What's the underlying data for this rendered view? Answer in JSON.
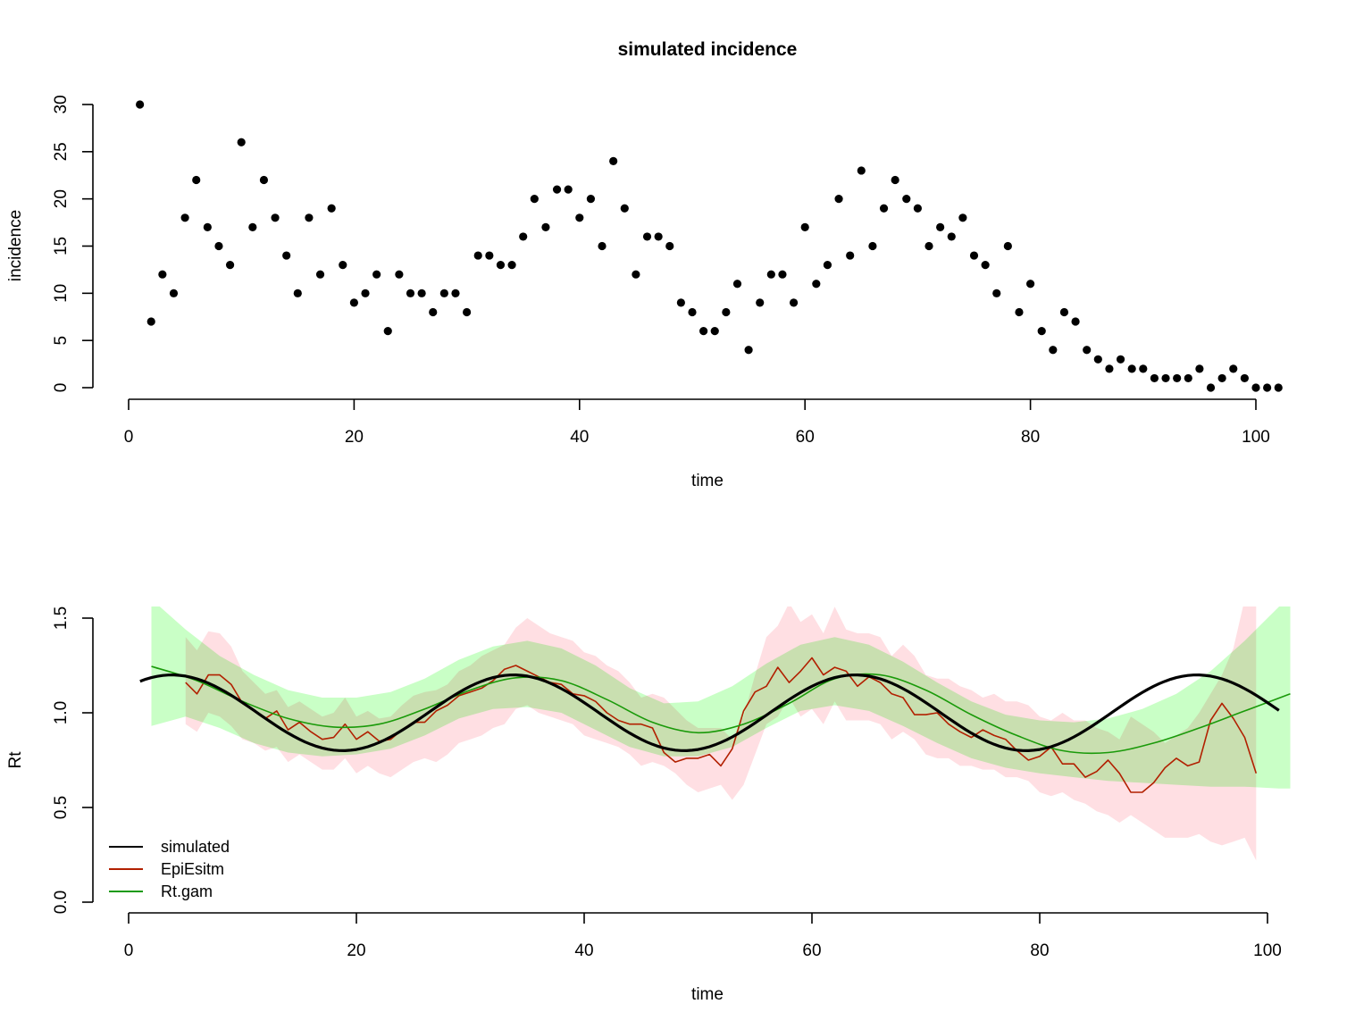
{
  "chart_data": [
    {
      "type": "scatter",
      "title": "simulated incidence",
      "xlabel": "time",
      "ylabel": "incidence",
      "xlim": [
        0,
        102
      ],
      "ylim": [
        0,
        30
      ],
      "xticks": [
        0,
        20,
        40,
        60,
        80,
        100
      ],
      "yticks": [
        0,
        5,
        10,
        15,
        20,
        25,
        30
      ],
      "grid": false,
      "series": [
        {
          "color": "#000000",
          "x": [
            1,
            2,
            3,
            4,
            5,
            6,
            7,
            8,
            9,
            10,
            11,
            12,
            13,
            14,
            15,
            16,
            17,
            18,
            19,
            20,
            21,
            22,
            23,
            24,
            25,
            26,
            27,
            28,
            29,
            30,
            31,
            32,
            33,
            34,
            35,
            36,
            37,
            38,
            39,
            40,
            41,
            42,
            43,
            44,
            45,
            46,
            47,
            48,
            49,
            50,
            51,
            52,
            53,
            54,
            55,
            56,
            57,
            58,
            59,
            60,
            61,
            62,
            63,
            64,
            65,
            66,
            67,
            68,
            69,
            70,
            71,
            72,
            73,
            74,
            75,
            76,
            77,
            78,
            79,
            80,
            81,
            82,
            83,
            84,
            85,
            86,
            87,
            88,
            89,
            90,
            91,
            92,
            93,
            94,
            95,
            96,
            97,
            98,
            99,
            100,
            101,
            102
          ],
          "y": [
            30,
            7,
            12,
            10,
            18,
            22,
            17,
            15,
            13,
            26,
            17,
            22,
            18,
            14,
            10,
            18,
            12,
            19,
            13,
            9,
            10,
            12,
            6,
            12,
            10,
            10,
            8,
            10,
            10,
            8,
            14,
            14,
            13,
            13,
            16,
            20,
            17,
            21,
            21,
            18,
            20,
            15,
            24,
            19,
            12,
            16,
            16,
            15,
            9,
            8,
            6,
            6,
            8,
            11,
            4,
            9,
            12,
            12,
            9,
            17,
            11,
            13,
            20,
            14,
            23,
            15,
            19,
            22,
            20,
            19,
            15,
            17,
            16,
            18,
            14,
            13,
            10,
            15,
            8,
            11,
            6,
            4,
            8,
            7,
            4,
            3,
            2,
            3,
            2,
            2,
            1,
            1,
            1,
            1,
            2,
            0,
            1,
            2,
            1,
            0,
            0,
            0
          ]
        }
      ]
    },
    {
      "type": "line",
      "title": "",
      "xlabel": "time",
      "ylabel": "Rt",
      "xlim": [
        0,
        102
      ],
      "ylim": [
        0,
        1.5
      ],
      "xticks": [
        0,
        20,
        40,
        60,
        80,
        100
      ],
      "yticks": [
        0.0,
        0.5,
        1.0,
        1.5
      ],
      "ytick_labels": [
        "0.0",
        "0.5",
        "1.0",
        "1.5"
      ],
      "grid": false,
      "legend": {
        "position": "bottom-left",
        "entries": [
          {
            "label": "simulated",
            "color": "#000000"
          },
          {
            "label": "EpiEsitm",
            "color": "#b22000"
          },
          {
            "label": "Rt.gam",
            "color": "#1a9a0a"
          }
        ]
      },
      "bands": [
        {
          "name": "EpiEsitm interval",
          "color": "#ffdfe3",
          "x": [
            5,
            6,
            7,
            8,
            9,
            10,
            11,
            12,
            13,
            14,
            15,
            16,
            17,
            18,
            19,
            20,
            21,
            22,
            23,
            24,
            25,
            26,
            27,
            28,
            29,
            30,
            31,
            32,
            33,
            34,
            35,
            36,
            37,
            38,
            39,
            40,
            41,
            42,
            43,
            44,
            45,
            46,
            47,
            48,
            49,
            50,
            51,
            52,
            53,
            54,
            55,
            56,
            57,
            58,
            59,
            60,
            61,
            62,
            63,
            64,
            65,
            66,
            67,
            68,
            69,
            70,
            71,
            72,
            73,
            74,
            75,
            76,
            77,
            78,
            79,
            80,
            81,
            82,
            83,
            84,
            85,
            86,
            87,
            88,
            89,
            90,
            91,
            92,
            93,
            94,
            95,
            96,
            97,
            98,
            99
          ],
          "upper": [
            1.4,
            1.33,
            1.43,
            1.42,
            1.35,
            1.22,
            1.16,
            1.1,
            1.12,
            1.03,
            1.06,
            1.02,
            0.98,
            1.0,
            1.08,
            0.98,
            1.01,
            0.97,
            0.98,
            1.04,
            1.09,
            1.11,
            1.12,
            1.15,
            1.22,
            1.25,
            1.3,
            1.33,
            1.36,
            1.45,
            1.5,
            1.46,
            1.42,
            1.4,
            1.38,
            1.32,
            1.3,
            1.25,
            1.22,
            1.16,
            1.08,
            1.1,
            1.08,
            1.02,
            0.96,
            0.92,
            0.92,
            0.92,
            0.86,
            0.98,
            1.2,
            1.4,
            1.46,
            1.58,
            1.48,
            1.52,
            1.42,
            1.56,
            1.44,
            1.42,
            1.42,
            1.4,
            1.3,
            1.36,
            1.3,
            1.2,
            1.18,
            1.18,
            1.14,
            1.12,
            1.08,
            1.1,
            1.06,
            1.06,
            1.04,
            0.98,
            0.96,
            1.0,
            0.96,
            0.96,
            0.92,
            0.9,
            0.86,
            0.98,
            0.94,
            0.9,
            0.84,
            0.88,
            0.92,
            1.0,
            1.1,
            1.2,
            1.34,
            1.6,
            1.6
          ],
          "lower": [
            0.94,
            0.9,
            1.0,
            0.98,
            0.93,
            0.86,
            0.84,
            0.8,
            0.82,
            0.74,
            0.78,
            0.74,
            0.7,
            0.7,
            0.76,
            0.68,
            0.72,
            0.68,
            0.66,
            0.7,
            0.74,
            0.76,
            0.74,
            0.78,
            0.84,
            0.86,
            0.88,
            0.92,
            0.94,
            1.02,
            1.04,
            1.0,
            0.98,
            0.96,
            0.94,
            0.88,
            0.86,
            0.84,
            0.82,
            0.78,
            0.72,
            0.74,
            0.72,
            0.68,
            0.62,
            0.58,
            0.6,
            0.62,
            0.54,
            0.62,
            0.78,
            0.94,
            0.98,
            1.08,
            0.98,
            1.02,
            0.94,
            1.06,
            0.96,
            0.96,
            0.96,
            0.94,
            0.86,
            0.9,
            0.86,
            0.78,
            0.76,
            0.76,
            0.72,
            0.72,
            0.7,
            0.7,
            0.66,
            0.66,
            0.64,
            0.58,
            0.56,
            0.58,
            0.54,
            0.52,
            0.48,
            0.46,
            0.42,
            0.46,
            0.42,
            0.38,
            0.34,
            0.34,
            0.34,
            0.36,
            0.32,
            0.3,
            0.32,
            0.34,
            0.22
          ]
        },
        {
          "name": "Rt.gam interval",
          "color": "#c9ffc6",
          "x": [
            2,
            5,
            8,
            11,
            14,
            17,
            20,
            23,
            26,
            29,
            32,
            35,
            38,
            41,
            44,
            47,
            50,
            53,
            56,
            59,
            62,
            65,
            68,
            71,
            74,
            77,
            80,
            83,
            86,
            89,
            92,
            95,
            98,
            101,
            102
          ],
          "upper": [
            1.6,
            1.44,
            1.3,
            1.2,
            1.12,
            1.08,
            1.08,
            1.11,
            1.18,
            1.28,
            1.35,
            1.38,
            1.34,
            1.25,
            1.13,
            1.05,
            1.06,
            1.14,
            1.26,
            1.36,
            1.4,
            1.36,
            1.27,
            1.16,
            1.06,
            0.99,
            0.96,
            0.95,
            0.97,
            1.02,
            1.1,
            1.22,
            1.38,
            1.56,
            1.6
          ],
          "lower": [
            0.93,
            0.98,
            0.92,
            0.84,
            0.79,
            0.77,
            0.78,
            0.81,
            0.88,
            0.97,
            1.02,
            1.03,
            1.0,
            0.91,
            0.82,
            0.77,
            0.77,
            0.82,
            0.92,
            1.01,
            1.04,
            1.01,
            0.93,
            0.84,
            0.76,
            0.71,
            0.68,
            0.66,
            0.64,
            0.63,
            0.62,
            0.61,
            0.61,
            0.6,
            0.6
          ]
        }
      ],
      "series": [
        {
          "color": "#000000",
          "linewidth": 3.2,
          "function": {
            "form": "1 + 0.2*sin(2*pi*(t - t0)/period)",
            "t0": -3.7,
            "period": 30,
            "t_from": 1,
            "t_to": 101
          }
        },
        {
          "color": "#b22000",
          "linewidth": 1.6,
          "x": [
            5,
            6,
            7,
            8,
            9,
            10,
            11,
            12,
            13,
            14,
            15,
            16,
            17,
            18,
            19,
            20,
            21,
            22,
            23,
            24,
            25,
            26,
            27,
            28,
            29,
            30,
            31,
            32,
            33,
            34,
            35,
            36,
            37,
            38,
            39,
            40,
            41,
            42,
            43,
            44,
            45,
            46,
            47,
            48,
            49,
            50,
            51,
            52,
            53,
            54,
            55,
            56,
            57,
            58,
            59,
            60,
            61,
            62,
            63,
            64,
            65,
            66,
            67,
            68,
            69,
            70,
            71,
            72,
            73,
            74,
            75,
            76,
            77,
            78,
            79,
            80,
            81,
            82,
            83,
            84,
            85,
            86,
            87,
            88,
            89,
            90,
            91,
            92,
            93,
            94,
            95,
            96,
            97,
            98,
            99
          ],
          "y": [
            1.16,
            1.1,
            1.2,
            1.2,
            1.15,
            1.05,
            1.01,
            0.97,
            1.01,
            0.91,
            0.95,
            0.9,
            0.86,
            0.87,
            0.94,
            0.86,
            0.9,
            0.85,
            0.86,
            0.91,
            0.95,
            0.95,
            1.01,
            1.04,
            1.09,
            1.11,
            1.13,
            1.17,
            1.23,
            1.25,
            1.22,
            1.19,
            1.16,
            1.15,
            1.1,
            1.09,
            1.06,
            1.0,
            0.96,
            0.94,
            0.94,
            0.92,
            0.79,
            0.74,
            0.76,
            0.76,
            0.78,
            0.72,
            0.81,
            1.01,
            1.11,
            1.14,
            1.24,
            1.16,
            1.22,
            1.29,
            1.2,
            1.24,
            1.22,
            1.14,
            1.19,
            1.16,
            1.1,
            1.08,
            0.99,
            0.99,
            1.0,
            0.94,
            0.9,
            0.87,
            0.91,
            0.88,
            0.86,
            0.8,
            0.75,
            0.77,
            0.82,
            0.73,
            0.73,
            0.66,
            0.69,
            0.75,
            0.68,
            0.58,
            0.58,
            0.63,
            0.71,
            0.76,
            0.72,
            0.74,
            0.96,
            1.05,
            0.97,
            0.87,
            0.68
          ]
        },
        {
          "color": "#1a9a0a",
          "linewidth": 1.6,
          "x": [
            2,
            6,
            10,
            14,
            18,
            22,
            26,
            30,
            34,
            38,
            42,
            46,
            50,
            54,
            58,
            62,
            66,
            70,
            74,
            78,
            82,
            86,
            90,
            94,
            98,
            102
          ],
          "y": [
            1.245,
            1.17,
            1.06,
            0.97,
            0.925,
            0.94,
            1.02,
            1.12,
            1.185,
            1.17,
            1.07,
            0.95,
            0.895,
            0.94,
            1.05,
            1.18,
            1.2,
            1.12,
            0.99,
            0.88,
            0.8,
            0.79,
            0.84,
            0.92,
            1.01,
            1.1
          ]
        }
      ]
    }
  ]
}
